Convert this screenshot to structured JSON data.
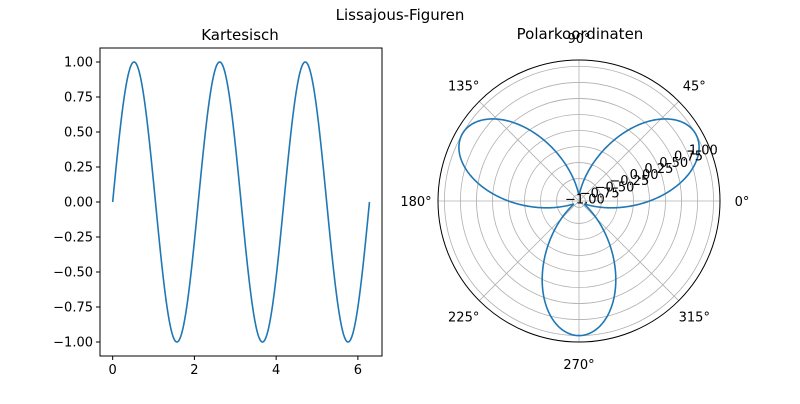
{
  "figure": {
    "title": "Lissajous-Figuren"
  },
  "colors": {
    "line": "#1f77b4",
    "grid": "#b0b0b0",
    "axes": "#000000",
    "background": "#ffffff"
  },
  "chart_data": [
    {
      "type": "line",
      "title": "Kartesisch",
      "function": "y = sin(3x)",
      "x": [
        0,
        0.25,
        0.5,
        0.75,
        1.0,
        1.25,
        1.5,
        1.75,
        2.0,
        2.25,
        2.5,
        2.75,
        3.0,
        3.25,
        3.5,
        3.75,
        4.0,
        4.25,
        4.5,
        4.75,
        5.0,
        5.25,
        5.5,
        5.75,
        6.0,
        6.28
      ],
      "y": [
        0.0,
        0.68,
        1.0,
        0.78,
        0.14,
        -0.57,
        -0.98,
        -0.86,
        -0.28,
        0.45,
        0.94,
        0.93,
        0.41,
        -0.32,
        -0.88,
        -0.97,
        -0.54,
        0.18,
        0.8,
        1.0,
        0.65,
        -0.04,
        -0.71,
        -0.99,
        -0.75,
        -0.03
      ],
      "xlim": [
        -0.31,
        6.59
      ],
      "ylim": [
        -1.1,
        1.1
      ],
      "xticks": [
        "0",
        "2",
        "4",
        "6"
      ],
      "yticks": [
        "-1.00",
        "-0.75",
        "-0.50",
        "-0.25",
        "0.00",
        "0.25",
        "0.50",
        "0.75",
        "1.00"
      ],
      "grid": false
    },
    {
      "type": "line",
      "projection": "polar",
      "title": "Polarkoordinaten",
      "function": "r = sin(3θ)",
      "theta_range_deg": [
        0,
        360
      ],
      "rlim": [
        -1.1,
        1.1
      ],
      "theta_ticks": [
        "0°",
        "45°",
        "90°",
        "135°",
        "180°",
        "225°",
        "270°",
        "315°"
      ],
      "r_ticks": [
        "-1.00",
        "-0.75",
        "-0.50",
        "-0.25",
        "0.00",
        "0.25",
        "0.50",
        "0.75",
        "1.00"
      ],
      "grid": true
    }
  ]
}
